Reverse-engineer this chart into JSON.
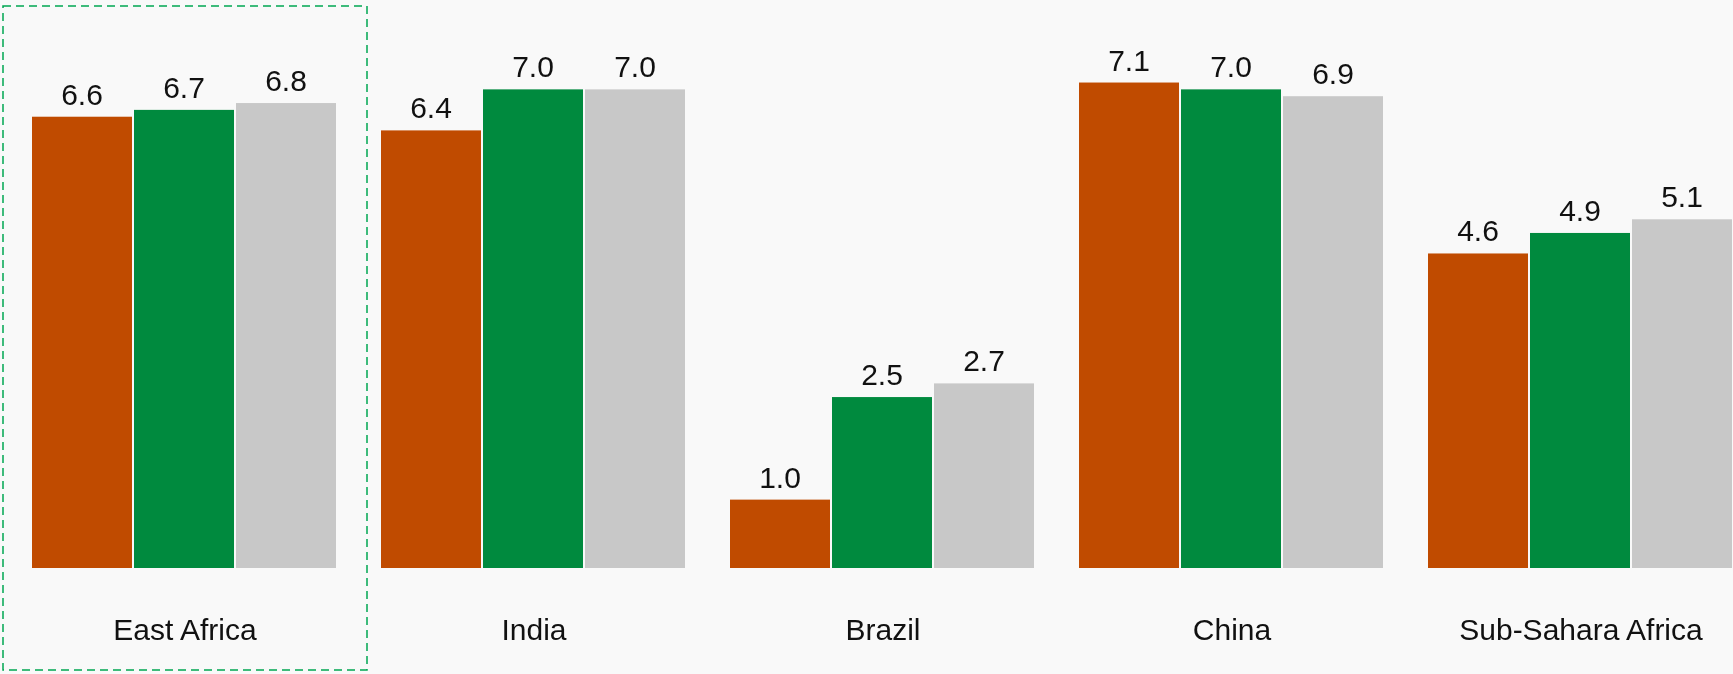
{
  "chart_data": {
    "type": "bar",
    "categories": [
      "East Africa",
      "India",
      "Brazil",
      "China",
      "Sub-Sahara Africa"
    ],
    "series": [
      {
        "color": "#c04b00",
        "values": [
          6.6,
          6.4,
          1.0,
          7.1,
          4.6
        ],
        "value_labels": [
          "6.6",
          "6.4",
          "1.0",
          "7.1",
          "4.6"
        ]
      },
      {
        "color": "#008a3e",
        "values": [
          6.7,
          7.0,
          2.5,
          7.0,
          4.9
        ],
        "value_labels": [
          "6.7",
          "7.0",
          "2.5",
          "7.0",
          "4.9"
        ]
      },
      {
        "color": "#c8c8c8",
        "values": [
          6.8,
          7.0,
          2.7,
          6.9,
          5.1
        ],
        "value_labels": [
          "6.8",
          "7.0",
          "2.7",
          "6.9",
          "5.1"
        ]
      }
    ]
  }
}
